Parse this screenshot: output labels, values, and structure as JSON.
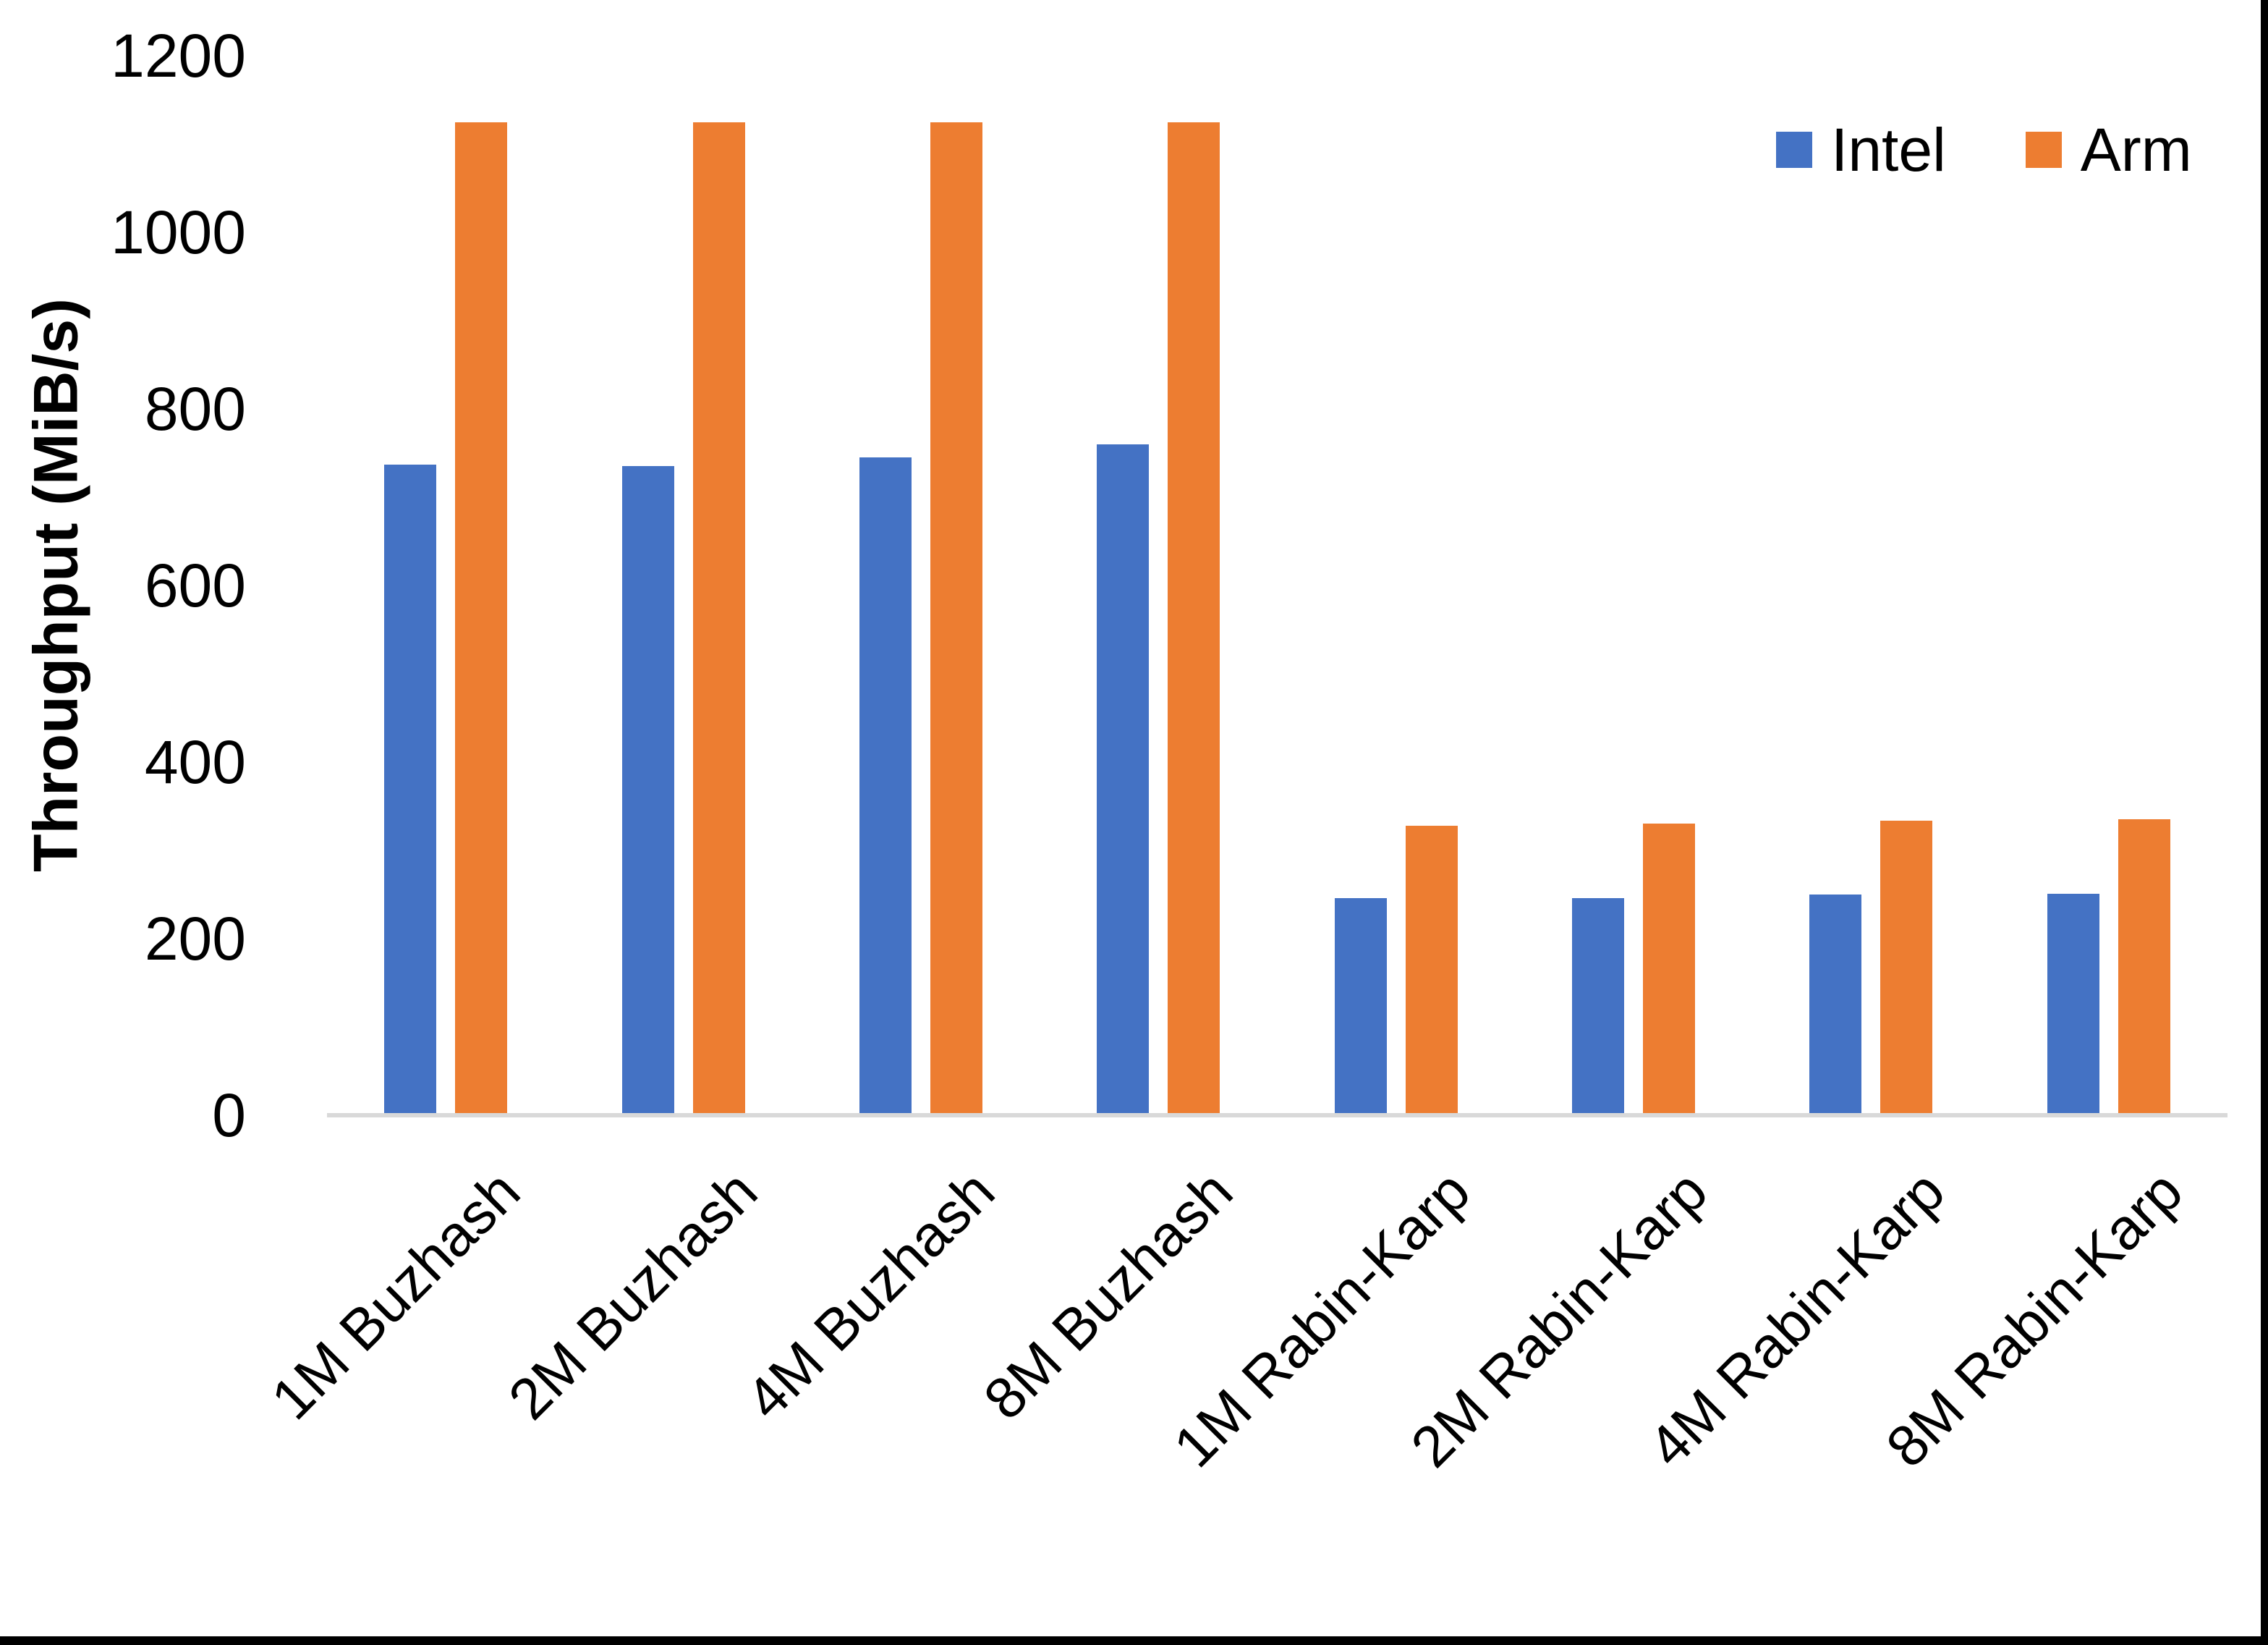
{
  "chart_data": {
    "type": "bar",
    "title": "",
    "xlabel": "",
    "ylabel": "Throughput (MiB/s)",
    "ylim": [
      0,
      1200
    ],
    "yticks": [
      0,
      200,
      400,
      600,
      800,
      1000,
      1200
    ],
    "grid": false,
    "legend_position": "top-right",
    "categories": [
      "1M Buzhash",
      "2M Buzhash",
      "4M Buzhash",
      "8M Buzhash",
      "1M Rabin-Karp",
      "2M Rabin-Karp",
      "4M Rabin-Karp",
      "8M Rabin-Karp"
    ],
    "series": [
      {
        "name": "Intel",
        "color": "#4472C4",
        "values": [
          737,
          735,
          745,
          760,
          246,
          246,
          250,
          251
        ]
      },
      {
        "name": "Arm",
        "color": "#ED7D31",
        "values": [
          1125,
          1125,
          1125,
          1125,
          328,
          330,
          334,
          335
        ]
      }
    ],
    "axis_line_color": "#D9D9D9",
    "text_color": "#000000"
  }
}
